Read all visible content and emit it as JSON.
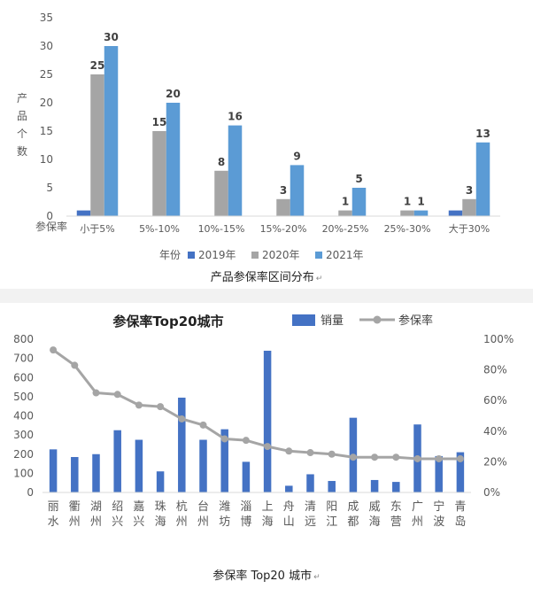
{
  "chart_data": [
    {
      "type": "bar",
      "ylabel": "产品个数",
      "xlabel": "参保率",
      "ylim": [
        0,
        35
      ],
      "yticks": [
        0,
        5,
        10,
        15,
        20,
        25,
        30,
        35
      ],
      "categories": [
        "小于5%",
        "5%-10%",
        "10%-15%",
        "15%-20%",
        "20%-25%",
        "25%-30%",
        "大于30%"
      ],
      "series": [
        {
          "name": "2019年",
          "color": "#4472c4",
          "values": [
            1,
            0,
            0,
            0,
            0,
            0,
            1
          ]
        },
        {
          "name": "2020年",
          "color": "#a5a5a5",
          "values": [
            25,
            15,
            8,
            3,
            1,
            1,
            3
          ]
        },
        {
          "name": "2021年",
          "color": "#5b9bd5",
          "values": [
            30,
            20,
            16,
            9,
            5,
            1,
            13
          ]
        }
      ],
      "data_labels": [
        [
          null,
          null,
          null,
          null,
          null,
          null,
          null
        ],
        [
          "25",
          "15",
          "8",
          "3",
          "1",
          "1",
          "3"
        ],
        [
          "30",
          "20",
          "16",
          "9",
          "5",
          "1",
          "13"
        ]
      ],
      "legend_title": "年份",
      "legend_position": "bottom",
      "grid": false
    },
    {
      "type": "bar+line",
      "title": "参保率Top20城市",
      "categories": [
        "丽水",
        "衢州",
        "湖州",
        "绍兴",
        "嘉兴",
        "珠海",
        "杭州",
        "台州",
        "潍坊",
        "淄博",
        "上海",
        "舟山",
        "清远",
        "阳江",
        "成都",
        "威海",
        "东营",
        "广州",
        "宁波",
        "青岛"
      ],
      "ylim_left": [
        0,
        800
      ],
      "yticks_left": [
        0,
        100,
        200,
        300,
        400,
        500,
        600,
        700,
        800
      ],
      "ylim_right": [
        0,
        100
      ],
      "yticks_right": [
        "0%",
        "20%",
        "40%",
        "60%",
        "80%",
        "100%"
      ],
      "series": [
        {
          "name": "销量",
          "type": "bar",
          "axis": "left",
          "color": "#4472c4",
          "values": [
            225,
            185,
            200,
            325,
            275,
            110,
            495,
            275,
            330,
            160,
            740,
            35,
            95,
            60,
            390,
            65,
            55,
            355,
            190,
            210
          ]
        },
        {
          "name": "参保率",
          "type": "line",
          "axis": "right",
          "color": "#a5a5a5",
          "values": [
            93,
            83,
            65,
            64,
            57,
            56,
            48,
            44,
            35,
            34,
            30,
            27,
            26,
            25,
            23,
            23,
            23,
            22,
            22,
            22
          ]
        }
      ],
      "legend_position": "top",
      "grid": false
    }
  ],
  "captions": {
    "chart1": "产品参保率区间分布",
    "chart2": "参保率 Top20 城市",
    "para_mark": "↵"
  }
}
